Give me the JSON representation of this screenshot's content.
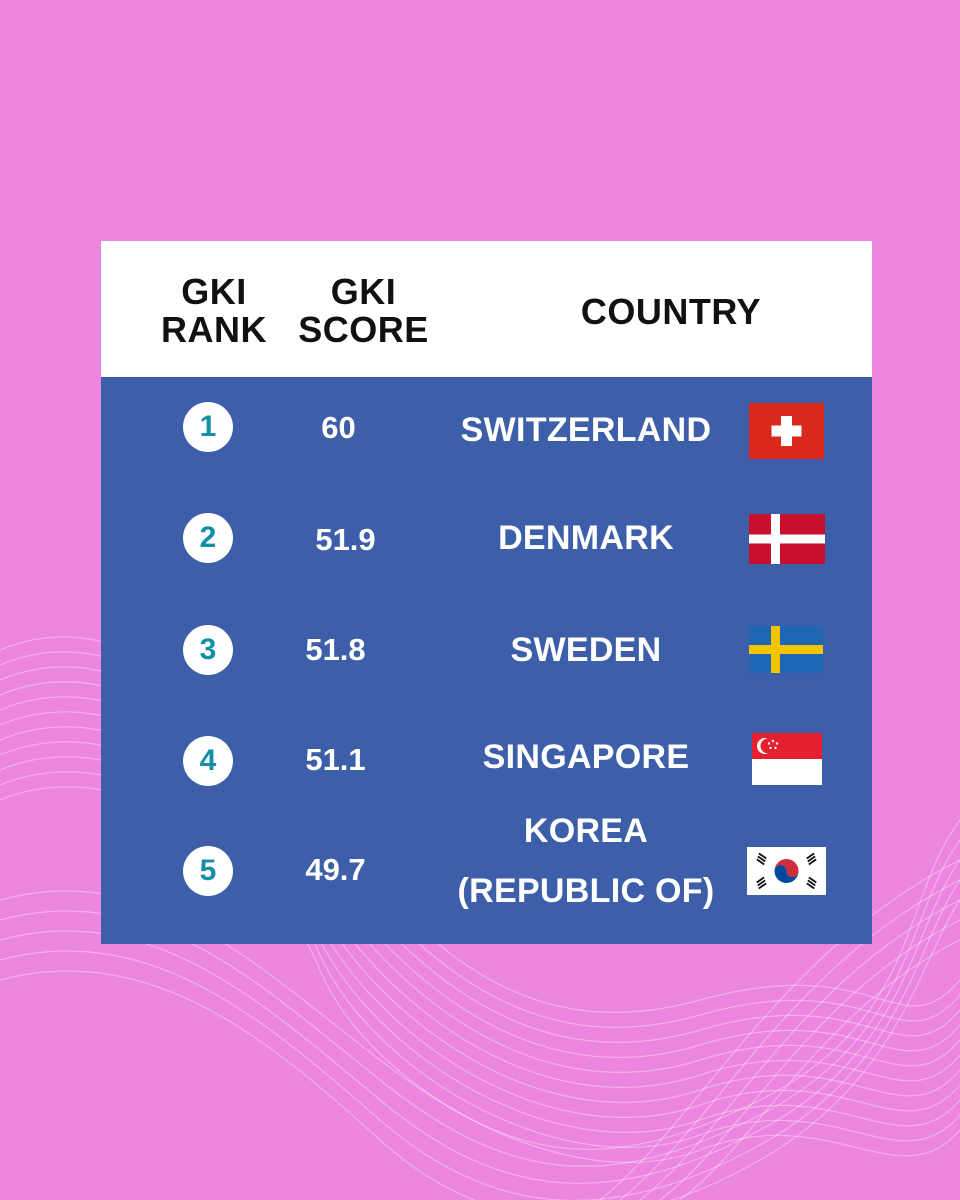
{
  "header": {
    "rank_line1": "GKI",
    "rank_line2": "RANK",
    "score_line1": "GKI",
    "score_line2": "SCORE",
    "country": "COUNTRY"
  },
  "rows": [
    {
      "rank": "1",
      "score": "60",
      "country": "SWITZERLAND",
      "flag_icon": "switzerland-flag"
    },
    {
      "rank": "2",
      "score": "51.9",
      "country": "DENMARK",
      "flag_icon": "denmark-flag"
    },
    {
      "rank": "3",
      "score": "51.8",
      "country": "SWEDEN",
      "flag_icon": "sweden-flag"
    },
    {
      "rank": "4",
      "score": "51.1",
      "country": "SINGAPORE",
      "flag_icon": "singapore-flag"
    },
    {
      "rank": "5",
      "score": "49.7",
      "country_line1": "KOREA",
      "country_line2": "(REPUBLIC OF)",
      "flag_icon": "south-korea-flag"
    }
  ],
  "colors": {
    "background": "#ec86e0",
    "panel": "#3d5ea9",
    "header": "#ffffff",
    "rank_badge_text": "#138fa7"
  }
}
